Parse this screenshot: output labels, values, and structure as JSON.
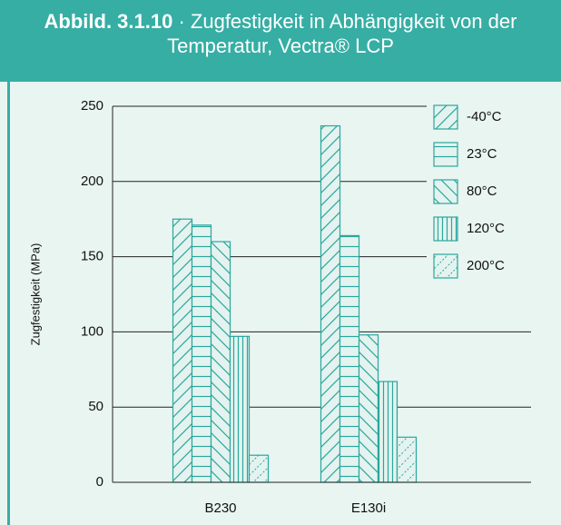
{
  "chart_data": {
    "type": "bar",
    "title_number": "Abbild. 3.1.10",
    "title": "· Zugfestigkeit in Abhängigkeit von der Temperatur, Vectra® LCP",
    "ylabel": "Zugfestigkeit (MPa)",
    "categories": [
      "B230",
      "E130i"
    ],
    "series": [
      {
        "name": "-40°C",
        "color": "#2aa79d",
        "pattern": "diag-up",
        "values": [
          175,
          237
        ]
      },
      {
        "name": "23°C",
        "color": "#2aa79d",
        "pattern": "horizontal",
        "values": [
          171,
          164
        ]
      },
      {
        "name": "80°C",
        "color": "#2aa79d",
        "pattern": "diag-down",
        "values": [
          160,
          98
        ]
      },
      {
        "name": "120°C",
        "color": "#2aa79d",
        "pattern": "vertical",
        "values": [
          97,
          67
        ]
      },
      {
        "name": "200°C",
        "color": "#2aa79d",
        "pattern": "dashed-diag",
        "values": [
          18,
          30
        ]
      }
    ],
    "ylim": [
      0,
      250
    ],
    "yticks": [
      0,
      50,
      100,
      150,
      200,
      250
    ],
    "grid": true,
    "legend": "top-right"
  }
}
